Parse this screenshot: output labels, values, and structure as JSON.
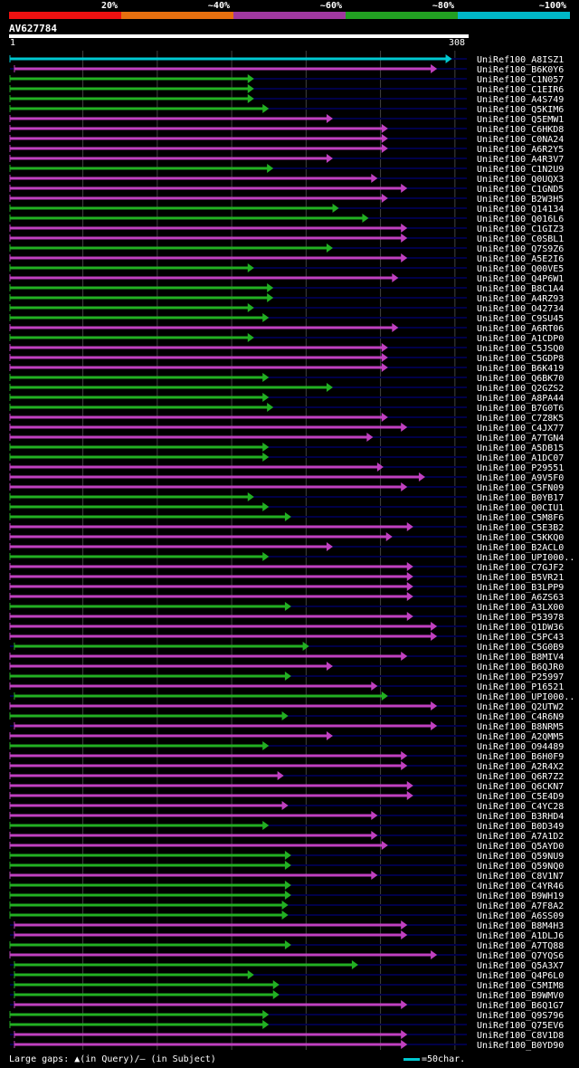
{
  "legend": {
    "bins": [
      {
        "label": "20%",
        "color": "#ee1111"
      },
      {
        "label": "~40%",
        "color": "#e8700f"
      },
      {
        "label": "~60%",
        "color": "#a038a0"
      },
      {
        "label": "~80%",
        "color": "#22a022"
      },
      {
        "label": "~100%",
        "color": "#00b8c8"
      }
    ]
  },
  "query": {
    "id": "AV627784",
    "start": "1",
    "end": "308"
  },
  "colors": {
    "cyan": "#00c8d0",
    "magenta": "#c040c0",
    "green": "#22b022",
    "dark": "#000048",
    "grid": "#404040"
  },
  "chart_data": {
    "type": "alignment-overview",
    "title": "AV627784",
    "x_range": [
      1,
      308
    ],
    "x_unit": "query position (char)",
    "gridlines_at": [
      50,
      100,
      150,
      200,
      250,
      300
    ],
    "hits": [
      {
        "id": "UniRef100_A8ISZ1",
        "s": 1,
        "e": 298,
        "c": "cyan"
      },
      {
        "id": "UniRef100_B6K0Y6",
        "s": 4,
        "e": 288,
        "c": "magenta"
      },
      {
        "id": "UniRef100_C1N057",
        "s": 1,
        "e": 165,
        "c": "green"
      },
      {
        "id": "UniRef100_C1EIR6",
        "s": 1,
        "e": 165,
        "c": "green"
      },
      {
        "id": "UniRef100_A4S749",
        "s": 1,
        "e": 165,
        "c": "green"
      },
      {
        "id": "UniRef100_Q5KIM6",
        "s": 1,
        "e": 175,
        "c": "green"
      },
      {
        "id": "UniRef100_Q5EMW1",
        "s": 1,
        "e": 218,
        "c": "magenta"
      },
      {
        "id": "UniRef100_C6HKD8",
        "s": 1,
        "e": 255,
        "c": "magenta"
      },
      {
        "id": "UniRef100_C0NA24",
        "s": 1,
        "e": 255,
        "c": "magenta"
      },
      {
        "id": "UniRef100_A6R2Y5",
        "s": 1,
        "e": 255,
        "c": "magenta"
      },
      {
        "id": "UniRef100_A4R3V7",
        "s": 1,
        "e": 218,
        "c": "magenta"
      },
      {
        "id": "UniRef100_C1N2U9",
        "s": 1,
        "e": 178,
        "c": "green"
      },
      {
        "id": "UniRef100_Q0UQX3",
        "s": 1,
        "e": 248,
        "c": "magenta"
      },
      {
        "id": "UniRef100_C1GND5",
        "s": 1,
        "e": 268,
        "c": "magenta"
      },
      {
        "id": "UniRef100_B2W3H5",
        "s": 1,
        "e": 255,
        "c": "magenta"
      },
      {
        "id": "UniRef100_Q14134",
        "s": 1,
        "e": 222,
        "c": "green"
      },
      {
        "id": "UniRef100_Q016L6",
        "s": 1,
        "e": 242,
        "c": "green"
      },
      {
        "id": "UniRef100_C1GIZ3",
        "s": 1,
        "e": 268,
        "c": "magenta"
      },
      {
        "id": "UniRef100_C0SBL1",
        "s": 1,
        "e": 268,
        "c": "magenta"
      },
      {
        "id": "UniRef100_Q7S9Z6",
        "s": 1,
        "e": 218,
        "c": "green"
      },
      {
        "id": "UniRef100_A5E2I6",
        "s": 1,
        "e": 268,
        "c": "magenta"
      },
      {
        "id": "UniRef100_Q00VE5",
        "s": 1,
        "e": 165,
        "c": "green"
      },
      {
        "id": "UniRef100_Q4P6W1",
        "s": 1,
        "e": 262,
        "c": "magenta"
      },
      {
        "id": "UniRef100_B8C1A4",
        "s": 1,
        "e": 178,
        "c": "green"
      },
      {
        "id": "UniRef100_A4RZ93",
        "s": 1,
        "e": 178,
        "c": "green"
      },
      {
        "id": "UniRef100_O42734",
        "s": 1,
        "e": 165,
        "c": "green"
      },
      {
        "id": "UniRef100_C9SU45",
        "s": 1,
        "e": 175,
        "c": "green"
      },
      {
        "id": "UniRef100_A6RT06",
        "s": 1,
        "e": 262,
        "c": "magenta"
      },
      {
        "id": "UniRef100_A1CDP0",
        "s": 1,
        "e": 165,
        "c": "green"
      },
      {
        "id": "UniRef100_C5JSQ0",
        "s": 1,
        "e": 255,
        "c": "magenta"
      },
      {
        "id": "UniRef100_C5GDP8",
        "s": 1,
        "e": 255,
        "c": "magenta"
      },
      {
        "id": "UniRef100_B6K419",
        "s": 1,
        "e": 255,
        "c": "magenta"
      },
      {
        "id": "UniRef100_Q6BK70",
        "s": 1,
        "e": 175,
        "c": "green"
      },
      {
        "id": "UniRef100_Q2GZS2",
        "s": 1,
        "e": 218,
        "c": "green"
      },
      {
        "id": "UniRef100_A8PA44",
        "s": 1,
        "e": 175,
        "c": "green"
      },
      {
        "id": "UniRef100_B7G0T6",
        "s": 1,
        "e": 178,
        "c": "green"
      },
      {
        "id": "UniRef100_C7Z8K5",
        "s": 1,
        "e": 255,
        "c": "magenta"
      },
      {
        "id": "UniRef100_C4JX77",
        "s": 1,
        "e": 268,
        "c": "magenta"
      },
      {
        "id": "UniRef100_A7TGN4",
        "s": 1,
        "e": 245,
        "c": "magenta"
      },
      {
        "id": "UniRef100_A5DB15",
        "s": 1,
        "e": 175,
        "c": "green"
      },
      {
        "id": "UniRef100_A1DC07",
        "s": 1,
        "e": 175,
        "c": "green"
      },
      {
        "id": "UniRef100_P29551",
        "s": 1,
        "e": 252,
        "c": "magenta"
      },
      {
        "id": "UniRef100_A9V5F0",
        "s": 1,
        "e": 280,
        "c": "magenta"
      },
      {
        "id": "UniRef100_C5FN09",
        "s": 1,
        "e": 268,
        "c": "magenta"
      },
      {
        "id": "UniRef100_B0YB17",
        "s": 1,
        "e": 165,
        "c": "green"
      },
      {
        "id": "UniRef100_Q0CIU1",
        "s": 1,
        "e": 175,
        "c": "green"
      },
      {
        "id": "UniRef100_C5M8F6",
        "s": 1,
        "e": 190,
        "c": "green"
      },
      {
        "id": "UniRef100_C5E3B2",
        "s": 1,
        "e": 272,
        "c": "magenta"
      },
      {
        "id": "UniRef100_C5KKQ0",
        "s": 1,
        "e": 258,
        "c": "magenta"
      },
      {
        "id": "UniRef100_B2ACL0",
        "s": 1,
        "e": 218,
        "c": "magenta"
      },
      {
        "id": "UniRef100_UPI000..",
        "s": 1,
        "e": 175,
        "c": "green"
      },
      {
        "id": "UniRef100_C7GJF2",
        "s": 1,
        "e": 272,
        "c": "magenta"
      },
      {
        "id": "UniRef100_B5VR21",
        "s": 1,
        "e": 272,
        "c": "magenta"
      },
      {
        "id": "UniRef100_B3LPP9",
        "s": 1,
        "e": 272,
        "c": "magenta"
      },
      {
        "id": "UniRef100_A6ZS63",
        "s": 1,
        "e": 272,
        "c": "magenta"
      },
      {
        "id": "UniRef100_A3LX00",
        "s": 1,
        "e": 190,
        "c": "green"
      },
      {
        "id": "UniRef100_P53978",
        "s": 1,
        "e": 272,
        "c": "magenta"
      },
      {
        "id": "UniRef100_Q1DW36",
        "s": 1,
        "e": 288,
        "c": "magenta"
      },
      {
        "id": "UniRef100_C5PC43",
        "s": 1,
        "e": 288,
        "c": "magenta"
      },
      {
        "id": "UniRef100_C5G0B9",
        "s": 4,
        "e": 202,
        "c": "green"
      },
      {
        "id": "UniRef100_B8MIV4",
        "s": 1,
        "e": 268,
        "c": "magenta"
      },
      {
        "id": "UniRef100_B6QJR0",
        "s": 1,
        "e": 218,
        "c": "magenta"
      },
      {
        "id": "UniRef100_P25997",
        "s": 1,
        "e": 190,
        "c": "green"
      },
      {
        "id": "UniRef100_P16521",
        "s": 1,
        "e": 248,
        "c": "magenta"
      },
      {
        "id": "UniRef100_UPI000..",
        "s": 4,
        "e": 255,
        "c": "green"
      },
      {
        "id": "UniRef100_Q2UTW2",
        "s": 1,
        "e": 288,
        "c": "magenta"
      },
      {
        "id": "UniRef100_C4R6N9",
        "s": 1,
        "e": 188,
        "c": "green"
      },
      {
        "id": "UniRef100_B8NRM5",
        "s": 4,
        "e": 288,
        "c": "magenta"
      },
      {
        "id": "UniRef100_A2QMM5",
        "s": 1,
        "e": 218,
        "c": "magenta"
      },
      {
        "id": "UniRef100_O94489",
        "s": 1,
        "e": 175,
        "c": "green"
      },
      {
        "id": "UniRef100_B6H0F9",
        "s": 1,
        "e": 268,
        "c": "magenta"
      },
      {
        "id": "UniRef100_A2R4X2",
        "s": 1,
        "e": 268,
        "c": "magenta"
      },
      {
        "id": "UniRef100_Q6R7Z2",
        "s": 1,
        "e": 185,
        "c": "magenta"
      },
      {
        "id": "UniRef100_Q6CKN7",
        "s": 1,
        "e": 272,
        "c": "magenta"
      },
      {
        "id": "UniRef100_C5E4D9",
        "s": 1,
        "e": 272,
        "c": "magenta"
      },
      {
        "id": "UniRef100_C4YC28",
        "s": 1,
        "e": 188,
        "c": "magenta"
      },
      {
        "id": "UniRef100_B3RHD4",
        "s": 1,
        "e": 248,
        "c": "magenta"
      },
      {
        "id": "UniRef100_B0D349",
        "s": 1,
        "e": 175,
        "c": "green"
      },
      {
        "id": "UniRef100_A7A1D2",
        "s": 1,
        "e": 248,
        "c": "magenta"
      },
      {
        "id": "UniRef100_Q5AYD0",
        "s": 1,
        "e": 255,
        "c": "magenta"
      },
      {
        "id": "UniRef100_Q59NU9",
        "s": 1,
        "e": 190,
        "c": "green"
      },
      {
        "id": "UniRef100_Q59NQ0",
        "s": 1,
        "e": 190,
        "c": "green"
      },
      {
        "id": "UniRef100_C8V1N7",
        "s": 1,
        "e": 248,
        "c": "magenta"
      },
      {
        "id": "UniRef100_C4YR46",
        "s": 1,
        "e": 190,
        "c": "green"
      },
      {
        "id": "UniRef100_B9WH19",
        "s": 1,
        "e": 190,
        "c": "green"
      },
      {
        "id": "UniRef100_A7F8A2",
        "s": 1,
        "e": 188,
        "c": "green"
      },
      {
        "id": "UniRef100_A6SS09",
        "s": 1,
        "e": 188,
        "c": "green"
      },
      {
        "id": "UniRef100_B8M4H3",
        "s": 4,
        "e": 268,
        "c": "magenta"
      },
      {
        "id": "UniRef100_A1DLJ6",
        "s": 4,
        "e": 268,
        "c": "magenta"
      },
      {
        "id": "UniRef100_A7TQ88",
        "s": 1,
        "e": 190,
        "c": "green"
      },
      {
        "id": "UniRef100_Q7YQS6",
        "s": 1,
        "e": 288,
        "c": "magenta"
      },
      {
        "id": "UniRef100_Q5A3X7",
        "s": 4,
        "e": 235,
        "c": "green"
      },
      {
        "id": "UniRef100_Q4P6L0",
        "s": 4,
        "e": 165,
        "c": "green"
      },
      {
        "id": "UniRef100_C5MIM8",
        "s": 4,
        "e": 182,
        "c": "green"
      },
      {
        "id": "UniRef100_B9WMV0",
        "s": 4,
        "e": 182,
        "c": "green"
      },
      {
        "id": "UniRef100_B6Q1G7",
        "s": 4,
        "e": 268,
        "c": "magenta"
      },
      {
        "id": "UniRef100_Q9S796",
        "s": 1,
        "e": 175,
        "c": "green"
      },
      {
        "id": "UniRef100_Q75EV6",
        "s": 1,
        "e": 175,
        "c": "green"
      },
      {
        "id": "UniRef100_C8V1D8",
        "s": 4,
        "e": 268,
        "c": "magenta"
      },
      {
        "id": "UniRef100_B0YD90",
        "s": 4,
        "e": 268,
        "c": "magenta"
      }
    ]
  },
  "footer": {
    "text": "Large gaps: ▲(in Query)/– (in Subject)",
    "scale_label": "=50char."
  }
}
